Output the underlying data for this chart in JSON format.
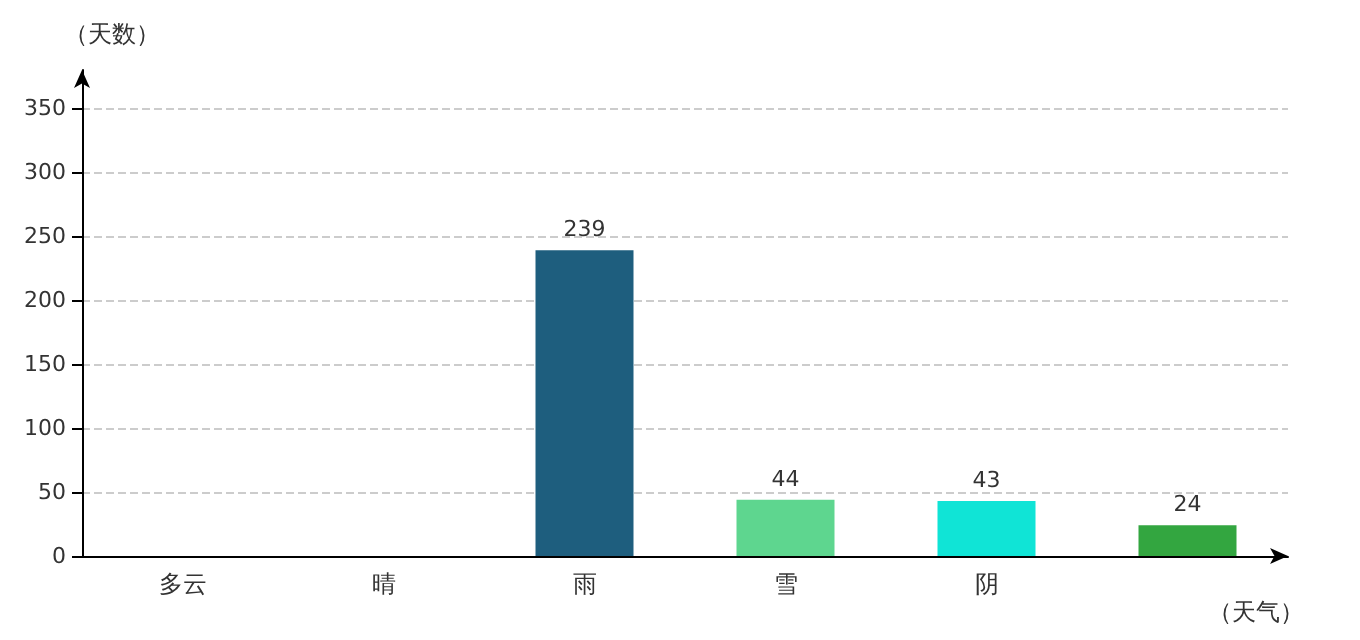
{
  "chart_data": {
    "type": "bar",
    "xlabel": "（天气）",
    "ylabel": "（天数）",
    "categories": [
      "多云",
      "晴",
      "雨",
      "雪",
      "阴",
      null
    ],
    "values": [
      null,
      null,
      239,
      44,
      43,
      24
    ],
    "colors": [
      "#d7e6c8",
      "#c81cf5",
      "#1e5e7e",
      "#5ed68f",
      "#10e4d6",
      "#33a640"
    ],
    "ylim": [
      0,
      380
    ],
    "yticks": [
      0,
      50,
      100,
      150,
      200,
      250,
      300,
      350
    ],
    "grid": "y",
    "data_labels": true
  }
}
